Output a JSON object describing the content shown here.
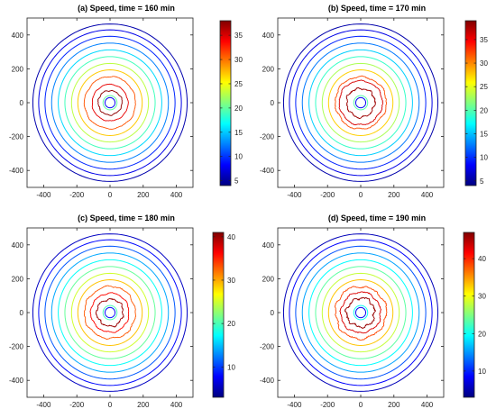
{
  "chart_data": [
    {
      "type": "contour",
      "title": "(a) Speed, time = 160 min",
      "xlim": [
        -500,
        500
      ],
      "ylim": [
        -500,
        500
      ],
      "xticks": [
        -400,
        -200,
        0,
        200,
        400
      ],
      "yticks": [
        -400,
        -200,
        0,
        200,
        400
      ],
      "clim": [
        4,
        38
      ],
      "colorbar_ticks": [
        5,
        10,
        15,
        20,
        25,
        30,
        35
      ],
      "colormap": "jet",
      "contour_levels": [
        {
          "radius": 465,
          "speed": 5.5
        },
        {
          "radius": 430,
          "speed": 7.5
        },
        {
          "radius": 392,
          "speed": 9.5
        },
        {
          "radius": 352,
          "speed": 12.5
        },
        {
          "radius": 312,
          "speed": 15.5
        },
        {
          "radius": 272,
          "speed": 19
        },
        {
          "radius": 232,
          "speed": 23
        },
        {
          "radius": 194,
          "speed": 27
        },
        {
          "radius": 154,
          "speed": 31
        },
        {
          "radius": 108,
          "speed": 34.5
        },
        {
          "radius": 72,
          "speed": 37.5
        },
        {
          "radius": 42,
          "speed": 20
        },
        {
          "radius": 30,
          "speed": 8
        }
      ],
      "irregularity": 0.18
    },
    {
      "type": "contour",
      "title": "(b) Speed, time = 170 min",
      "xlim": [
        -500,
        500
      ],
      "ylim": [
        -500,
        500
      ],
      "xticks": [
        -400,
        -200,
        0,
        200,
        400
      ],
      "yticks": [
        -400,
        -200,
        0,
        200,
        400
      ],
      "clim": [
        4,
        39
      ],
      "colorbar_ticks": [
        5,
        10,
        15,
        20,
        25,
        30,
        35
      ],
      "colormap": "jet",
      "contour_levels": [
        {
          "radius": 465,
          "speed": 5.5
        },
        {
          "radius": 430,
          "speed": 7.5
        },
        {
          "radius": 392,
          "speed": 9.5
        },
        {
          "radius": 352,
          "speed": 12.5
        },
        {
          "radius": 312,
          "speed": 15.5
        },
        {
          "radius": 272,
          "speed": 19
        },
        {
          "radius": 232,
          "speed": 23
        },
        {
          "radius": 194,
          "speed": 27.5
        },
        {
          "radius": 154,
          "speed": 32
        },
        {
          "radius": 130,
          "speed": 36
        },
        {
          "radius": 85,
          "speed": 38
        },
        {
          "radius": 42,
          "speed": 20
        },
        {
          "radius": 30,
          "speed": 8
        }
      ],
      "irregularity": 0.3
    },
    {
      "type": "contour",
      "title": "(c) Speed, time = 180 min",
      "xlim": [
        -500,
        500
      ],
      "ylim": [
        -500,
        500
      ],
      "xticks": [
        -400,
        -200,
        0,
        200,
        400
      ],
      "yticks": [
        -400,
        -200,
        0,
        200,
        400
      ],
      "clim": [
        3,
        41
      ],
      "colorbar_ticks": [
        10,
        20,
        30,
        40
      ],
      "colormap": "jet",
      "contour_levels": [
        {
          "radius": 465,
          "speed": 5.5
        },
        {
          "radius": 430,
          "speed": 8
        },
        {
          "radius": 392,
          "speed": 11
        },
        {
          "radius": 352,
          "speed": 14
        },
        {
          "radius": 312,
          "speed": 17.5
        },
        {
          "radius": 272,
          "speed": 21
        },
        {
          "radius": 232,
          "speed": 25
        },
        {
          "radius": 194,
          "speed": 29
        },
        {
          "radius": 154,
          "speed": 33
        },
        {
          "radius": 115,
          "speed": 36
        },
        {
          "radius": 80,
          "speed": 40
        },
        {
          "radius": 42,
          "speed": 20
        },
        {
          "radius": 30,
          "speed": 8
        }
      ],
      "irregularity": 0.3
    },
    {
      "type": "contour",
      "title": "(d) Speed, time = 190 min",
      "xlim": [
        -500,
        500
      ],
      "ylim": [
        -500,
        500
      ],
      "xticks": [
        -400,
        -200,
        0,
        200,
        400
      ],
      "yticks": [
        -400,
        -200,
        0,
        200,
        400
      ],
      "clim": [
        3,
        47
      ],
      "colorbar_ticks": [
        10,
        20,
        30,
        40
      ],
      "colormap": "jet",
      "contour_levels": [
        {
          "radius": 465,
          "speed": 5.5
        },
        {
          "radius": 430,
          "speed": 8.5
        },
        {
          "radius": 392,
          "speed": 12
        },
        {
          "radius": 352,
          "speed": 15.5
        },
        {
          "radius": 312,
          "speed": 19.5
        },
        {
          "radius": 272,
          "speed": 23.5
        },
        {
          "radius": 232,
          "speed": 28
        },
        {
          "radius": 194,
          "speed": 33
        },
        {
          "radius": 154,
          "speed": 38.5
        },
        {
          "radius": 120,
          "speed": 43
        },
        {
          "radius": 85,
          "speed": 46
        },
        {
          "radius": 42,
          "speed": 20
        },
        {
          "radius": 30,
          "speed": 8
        }
      ],
      "irregularity": 0.4
    }
  ]
}
